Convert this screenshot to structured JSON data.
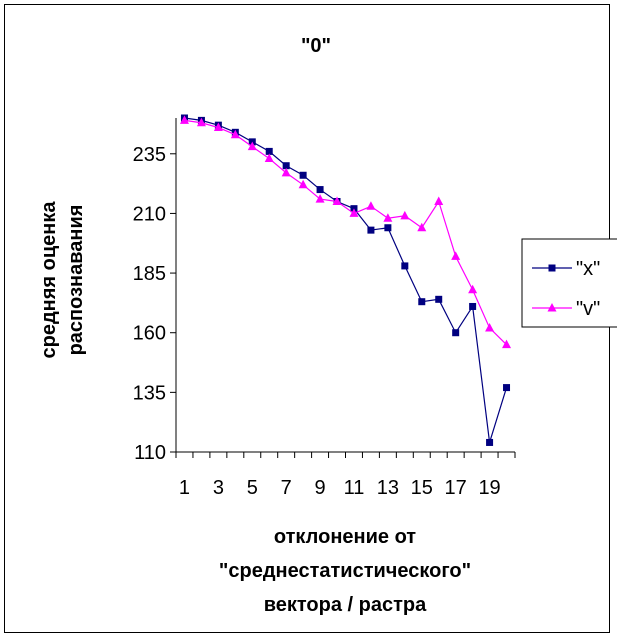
{
  "chart_data": {
    "type": "line",
    "title": "\"0\"",
    "ylabel_lines": [
      "средняя оценка",
      "распознавания"
    ],
    "xlabel_lines": [
      "отклонение от",
      "\"среднестатистического\"",
      "вектора / растра"
    ],
    "x": [
      1,
      2,
      3,
      4,
      5,
      6,
      7,
      8,
      9,
      10,
      11,
      12,
      13,
      14,
      15,
      16,
      17,
      18,
      19,
      20
    ],
    "x_tick_labels": [
      "1",
      "3",
      "5",
      "7",
      "9",
      "11",
      "13",
      "15",
      "17",
      "19"
    ],
    "ylim": [
      110,
      250
    ],
    "y_ticks": [
      110,
      135,
      160,
      185,
      210,
      235
    ],
    "grid": false,
    "legend_position": "right",
    "series": [
      {
        "name": "\"x\"",
        "color": "#000080",
        "marker": "square",
        "values": [
          250,
          249,
          247,
          244,
          240,
          236,
          230,
          226,
          220,
          215,
          212,
          203,
          204,
          188,
          173,
          174,
          160,
          171,
          114,
          137
        ]
      },
      {
        "name": "\"v\"",
        "color": "#ff00ff",
        "marker": "triangle",
        "values": [
          249,
          248,
          246,
          243,
          238,
          233,
          227,
          222,
          216,
          215,
          210,
          213,
          208,
          209,
          204,
          215,
          192,
          178,
          162,
          155
        ]
      }
    ]
  }
}
